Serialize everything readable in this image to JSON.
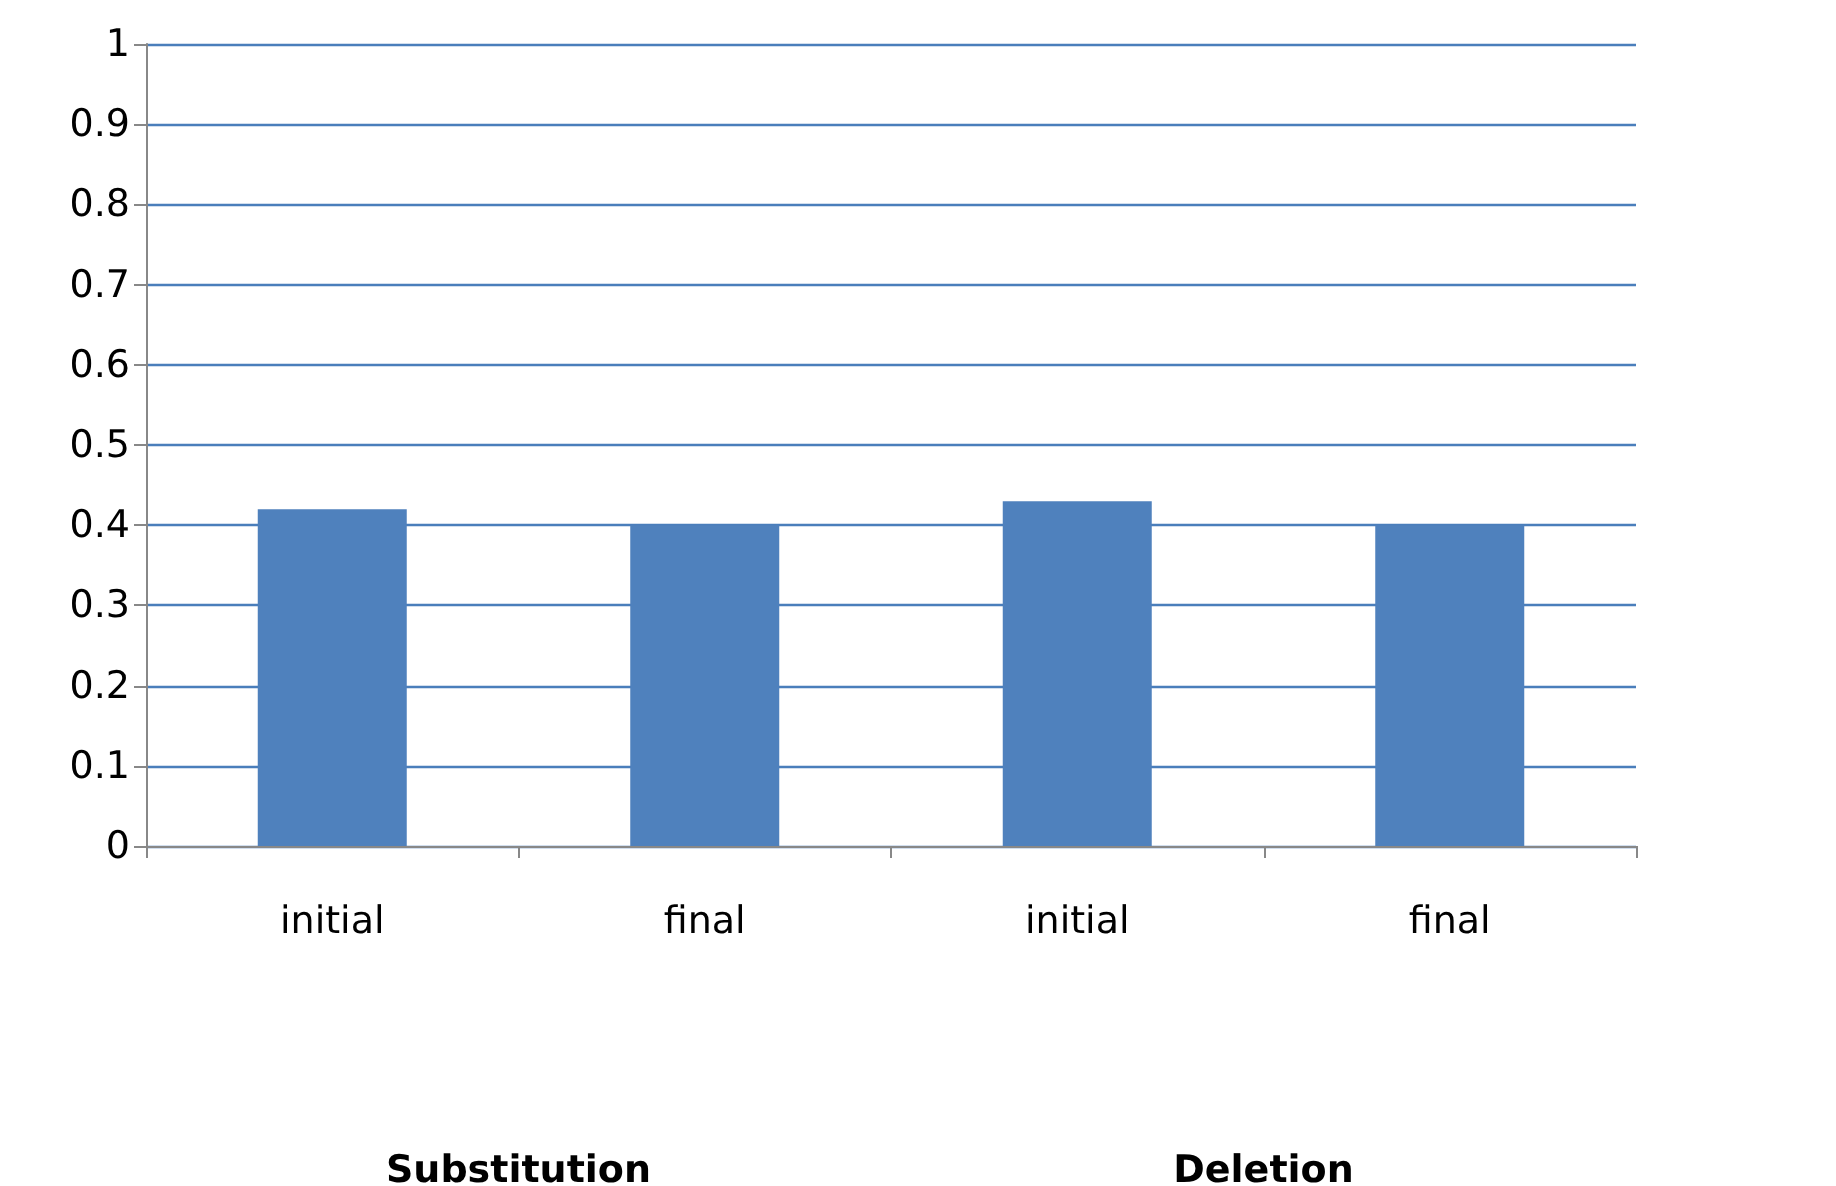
{
  "chart_data": {
    "type": "bar",
    "categories": [
      "initial",
      "final",
      "initial",
      "final"
    ],
    "values": [
      0.42,
      0.4,
      0.43,
      0.4
    ],
    "color": "#4f81bd",
    "ylim": [
      0,
      1
    ],
    "yticks": [
      0,
      0.1,
      0.2,
      0.3,
      0.4,
      0.5,
      0.6,
      0.7,
      0.8,
      0.9,
      1
    ],
    "grid": "y",
    "annotations": [
      "Substitution",
      "Deletion"
    ]
  }
}
